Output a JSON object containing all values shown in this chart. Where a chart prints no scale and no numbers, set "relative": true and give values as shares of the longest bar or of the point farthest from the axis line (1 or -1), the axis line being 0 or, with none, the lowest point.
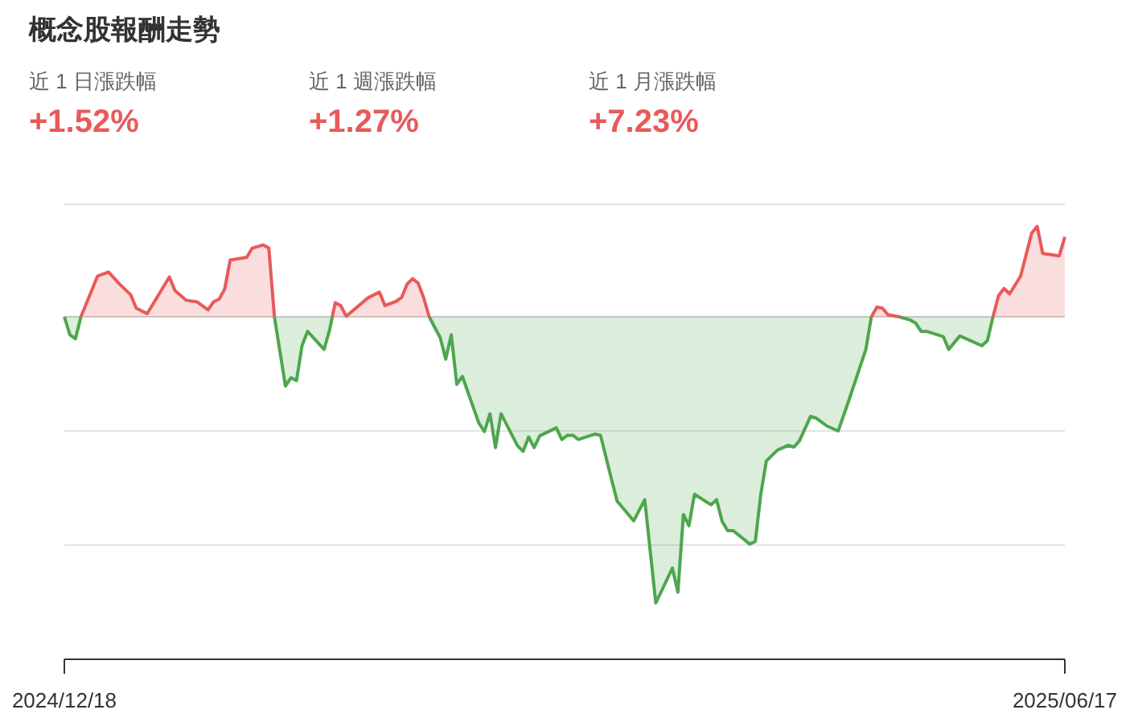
{
  "chart_data": {
    "type": "area",
    "title": "概念股報酬走勢",
    "annotations": [
      "近 1 日漲跌幅",
      "+1.52%",
      "近 1 週漲跌幅",
      "+1.27%",
      "近 1 月漲跌幅",
      "+7.23%"
    ],
    "relative": true,
    "xlim": [
      "2024-12-18",
      "2025-06-17"
    ],
    "xticks": [
      {
        "value": "2024-12-18",
        "label": "2024/12/18"
      },
      {
        "value": "2025-06-17",
        "label": "2025/06/17"
      }
    ],
    "ref_lines": [
      {
        "axis": "y",
        "value": 0.393,
        "color": "#e3e3e3"
      },
      {
        "axis": "y",
        "value": 0,
        "color": "#cccccc"
      },
      {
        "axis": "y",
        "value": -0.399,
        "color": "#e3e3e3"
      },
      {
        "axis": "y",
        "value": -0.798,
        "color": "#e3e3e3"
      }
    ],
    "x": [
      "2024-12-18",
      "2024-12-19",
      "2024-12-20",
      "2024-12-21",
      "2024-12-24",
      "2024-12-26",
      "2024-12-28",
      "2024-12-30",
      "2024-12-31",
      "2025-01-02",
      "2025-01-06",
      "2025-01-07",
      "2025-01-09",
      "2025-01-11",
      "2025-01-13",
      "2025-01-14",
      "2025-01-15",
      "2025-01-16",
      "2025-01-17",
      "2025-01-20",
      "2025-01-21",
      "2025-01-23",
      "2025-01-24",
      "2025-01-25",
      "2025-01-27",
      "2025-01-28",
      "2025-01-29",
      "2025-01-30",
      "2025-01-31",
      "2025-02-03",
      "2025-02-04",
      "2025-02-05",
      "2025-02-06",
      "2025-02-07",
      "2025-02-11",
      "2025-02-13",
      "2025-02-14",
      "2025-02-16",
      "2025-02-17",
      "2025-02-18",
      "2025-02-19",
      "2025-02-20",
      "2025-02-21",
      "2025-02-22",
      "2025-02-24",
      "2025-02-25",
      "2025-02-26",
      "2025-02-27",
      "2025-02-28",
      "2025-03-03",
      "2025-03-04",
      "2025-03-05",
      "2025-03-06",
      "2025-03-07",
      "2025-03-10",
      "2025-03-11",
      "2025-03-12",
      "2025-03-13",
      "2025-03-14",
      "2025-03-17",
      "2025-03-18",
      "2025-03-19",
      "2025-03-20",
      "2025-03-21",
      "2025-03-24",
      "2025-03-25",
      "2025-03-27",
      "2025-03-28",
      "2025-03-31",
      "2025-04-02",
      "2025-04-04",
      "2025-04-07",
      "2025-04-08",
      "2025-04-09",
      "2025-04-10",
      "2025-04-11",
      "2025-04-14",
      "2025-04-15",
      "2025-04-16",
      "2025-04-17",
      "2025-04-18",
      "2025-04-21",
      "2025-04-22",
      "2025-04-23",
      "2025-04-24",
      "2025-04-26",
      "2025-04-28",
      "2025-04-29",
      "2025-04-30",
      "2025-05-02",
      "2025-05-03",
      "2025-05-05",
      "2025-05-07",
      "2025-05-09",
      "2025-05-12",
      "2025-05-13",
      "2025-05-14",
      "2025-05-15",
      "2025-05-16",
      "2025-05-18",
      "2025-05-20",
      "2025-05-21",
      "2025-05-22",
      "2025-05-23",
      "2025-05-26",
      "2025-05-27",
      "2025-05-29",
      "2025-06-02",
      "2025-06-03",
      "2025-06-04",
      "2025-06-05",
      "2025-06-06",
      "2025-06-07",
      "2025-06-09",
      "2025-06-11",
      "2025-06-12",
      "2025-06-13",
      "2025-06-16",
      "2025-06-17"
    ],
    "series": [
      {
        "values": [
          0,
          -0.063,
          -0.077,
          0,
          0.142,
          0.156,
          0.114,
          0.077,
          0.03,
          0.011,
          0.139,
          0.092,
          0.058,
          0.052,
          0.024,
          0.052,
          0.062,
          0.096,
          0.198,
          0.208,
          0.24,
          0.251,
          0.24,
          0,
          -0.242,
          -0.213,
          -0.223,
          -0.101,
          -0.051,
          -0.114,
          -0.045,
          0.049,
          0.039,
          0.002,
          0.067,
          0.086,
          0.039,
          0.054,
          0.067,
          0.114,
          0.133,
          0.118,
          0.067,
          0,
          -0.073,
          -0.148,
          -0.063,
          -0.236,
          -0.208,
          -0.372,
          -0.401,
          -0.339,
          -0.457,
          -0.339,
          -0.451,
          -0.47,
          -0.42,
          -0.457,
          -0.416,
          -0.388,
          -0.429,
          -0.414,
          -0.414,
          -0.429,
          -0.41,
          -0.414,
          -0.569,
          -0.644,
          -0.713,
          -0.639,
          -1.0,
          -0.878,
          -0.962,
          -0.691,
          -0.73,
          -0.62,
          -0.657,
          -0.639,
          -0.715,
          -0.747,
          -0.747,
          -0.794,
          -0.785,
          -0.62,
          -0.504,
          -0.466,
          -0.449,
          -0.455,
          -0.433,
          -0.348,
          -0.354,
          -0.382,
          -0.399,
          -0.288,
          -0.114,
          0,
          0.034,
          0.03,
          0.007,
          0,
          -0.011,
          -0.022,
          -0.051,
          -0.051,
          -0.069,
          -0.114,
          -0.067,
          -0.101,
          -0.083,
          0,
          0.073,
          0.099,
          0.08,
          0.142,
          0.292,
          0.316,
          0.221,
          0.213,
          0.279
        ],
        "color": "#e85a5a",
        "colors": [
          "#e85a5a",
          "#4ea64e",
          "#4ea64e",
          "#e85a5a",
          "#e85a5a",
          "#e85a5a",
          "#e85a5a",
          "#e85a5a",
          "#e85a5a",
          "#e85a5a",
          "#e85a5a",
          "#e85a5a",
          "#e85a5a",
          "#e85a5a",
          "#e85a5a",
          "#e85a5a",
          "#e85a5a",
          "#e85a5a",
          "#e85a5a",
          "#e85a5a",
          "#e85a5a",
          "#e85a5a",
          "#e85a5a",
          "#e85a5a",
          "#4ea64e",
          "#4ea64e",
          "#4ea64e",
          "#4ea64e",
          "#4ea64e",
          "#4ea64e",
          "#4ea64e",
          "#e85a5a",
          "#e85a5a",
          "#e85a5a",
          "#e85a5a",
          "#e85a5a",
          "#e85a5a",
          "#e85a5a",
          "#e85a5a",
          "#e85a5a",
          "#e85a5a",
          "#e85a5a",
          "#e85a5a",
          "#e85a5a",
          "#4ea64e",
          "#4ea64e",
          "#4ea64e",
          "#4ea64e",
          "#4ea64e",
          "#4ea64e",
          "#4ea64e",
          "#4ea64e",
          "#4ea64e",
          "#4ea64e",
          "#4ea64e",
          "#4ea64e",
          "#4ea64e",
          "#4ea64e",
          "#4ea64e",
          "#4ea64e",
          "#4ea64e",
          "#4ea64e",
          "#4ea64e",
          "#4ea64e",
          "#4ea64e",
          "#4ea64e",
          "#4ea64e",
          "#4ea64e",
          "#4ea64e",
          "#4ea64e",
          "#4ea64e",
          "#4ea64e",
          "#4ea64e",
          "#4ea64e",
          "#4ea64e",
          "#4ea64e",
          "#4ea64e",
          "#4ea64e",
          "#4ea64e",
          "#4ea64e",
          "#4ea64e",
          "#4ea64e",
          "#4ea64e",
          "#4ea64e",
          "#4ea64e",
          "#4ea64e",
          "#4ea64e",
          "#4ea64e",
          "#4ea64e",
          "#4ea64e",
          "#4ea64e",
          "#4ea64e",
          "#4ea64e",
          "#4ea64e",
          "#4ea64e",
          "#e85a5a",
          "#e85a5a",
          "#e85a5a",
          "#e85a5a",
          "#e85a5a",
          "#4ea64e",
          "#4ea64e",
          "#4ea64e",
          "#4ea64e",
          "#4ea64e",
          "#4ea64e",
          "#4ea64e",
          "#4ea64e",
          "#4ea64e",
          "#e85a5a",
          "#e85a5a",
          "#e85a5a",
          "#e85a5a",
          "#e85a5a",
          "#e85a5a",
          "#e85a5a",
          "#e85a5a",
          "#e85a5a",
          "#e85a5a"
        ]
      }
    ]
  }
}
